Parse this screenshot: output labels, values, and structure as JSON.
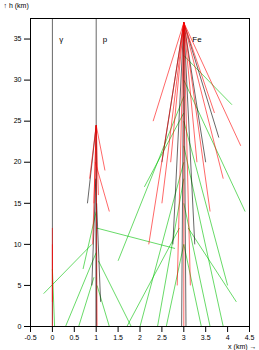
{
  "chart_data": {
    "type": "line",
    "xlabel": "x (km)",
    "ylabel": "h (km)",
    "xlim": [
      -0.5,
      4.5
    ],
    "ylim": [
      0,
      37.5
    ],
    "xticks": [
      -0.5,
      0,
      0.5,
      1,
      1.5,
      2,
      2.5,
      3,
      3.5,
      4,
      4.5
    ],
    "yticks": [
      0,
      5,
      10,
      15,
      20,
      25,
      30,
      35
    ],
    "vlines": [
      0,
      1
    ],
    "annotations": [
      {
        "text": "γ",
        "x": 0.2,
        "y": 35
      },
      {
        "text": "p",
        "x": 1.2,
        "y": 35
      },
      {
        "text": "Fe",
        "x": 3.3,
        "y": 35
      }
    ],
    "series": [
      {
        "color": "#00c000",
        "segments": [
          [
            0,
            7,
            0.05,
            0
          ],
          [
            0.9,
            10,
            -0.2,
            4
          ],
          [
            1,
            9,
            0.3,
            0
          ],
          [
            1.05,
            8,
            1.8,
            0
          ],
          [
            1,
            12,
            2.8,
            9.5
          ],
          [
            0.95,
            6,
            0.6,
            0
          ],
          [
            1.02,
            5,
            1.3,
            0
          ],
          [
            1,
            14,
            0.7,
            7
          ],
          [
            3,
            30,
            4.4,
            14
          ],
          [
            3,
            28,
            1.5,
            8
          ],
          [
            3,
            25,
            4.0,
            5
          ],
          [
            3,
            20,
            2.0,
            0
          ],
          [
            3,
            22,
            3.9,
            0
          ],
          [
            3,
            18,
            2.4,
            0
          ],
          [
            3,
            15,
            3.6,
            0
          ],
          [
            2.9,
            12,
            1.7,
            0
          ],
          [
            3.1,
            12,
            4.2,
            3
          ],
          [
            3,
            26,
            2.1,
            17
          ],
          [
            3,
            33,
            4.1,
            27
          ],
          [
            3,
            10,
            2.6,
            0
          ],
          [
            3,
            10,
            3.4,
            0
          ]
        ]
      },
      {
        "color": "#000000",
        "segments": [
          [
            1,
            24.5,
            1.0,
            0
          ],
          [
            0.99,
            18,
            0.9,
            5
          ],
          [
            1.01,
            15,
            1.1,
            3
          ],
          [
            1,
            24.5,
            0.8,
            15
          ],
          [
            3,
            37,
            2.95,
            0
          ],
          [
            3,
            37,
            3.05,
            0
          ],
          [
            3,
            37,
            2.75,
            10
          ],
          [
            3,
            37,
            3.25,
            10
          ],
          [
            3,
            37,
            2.5,
            20
          ],
          [
            3,
            37,
            3.5,
            20
          ],
          [
            3,
            37,
            3.8,
            23
          ]
        ]
      },
      {
        "color": "#ff0000",
        "segments": [
          [
            0,
            12,
            0,
            3
          ],
          [
            0,
            10,
            0,
            0
          ],
          [
            1,
            24.5,
            0.95,
            15
          ],
          [
            1,
            24.5,
            1.05,
            16
          ],
          [
            1,
            24.5,
            0.85,
            18
          ],
          [
            1,
            24.5,
            1.2,
            19
          ],
          [
            0.98,
            20,
            1.3,
            14
          ],
          [
            1,
            24.5,
            0.92,
            10
          ],
          [
            1,
            22,
            1.02,
            0
          ],
          [
            3,
            37,
            2.7,
            20
          ],
          [
            3,
            37,
            3.3,
            20
          ],
          [
            3,
            37,
            2.2,
            10
          ],
          [
            3,
            37,
            3.9,
            18
          ],
          [
            3,
            37,
            3.6,
            14
          ],
          [
            3,
            37,
            2.5,
            15
          ],
          [
            3,
            37,
            3.0,
            0
          ],
          [
            3,
            37,
            2.85,
            5
          ],
          [
            3,
            37,
            3.15,
            5
          ],
          [
            3,
            37,
            2.3,
            25
          ],
          [
            3,
            37,
            3.7,
            26
          ],
          [
            3,
            37,
            4.3,
            22
          ]
        ]
      }
    ]
  }
}
